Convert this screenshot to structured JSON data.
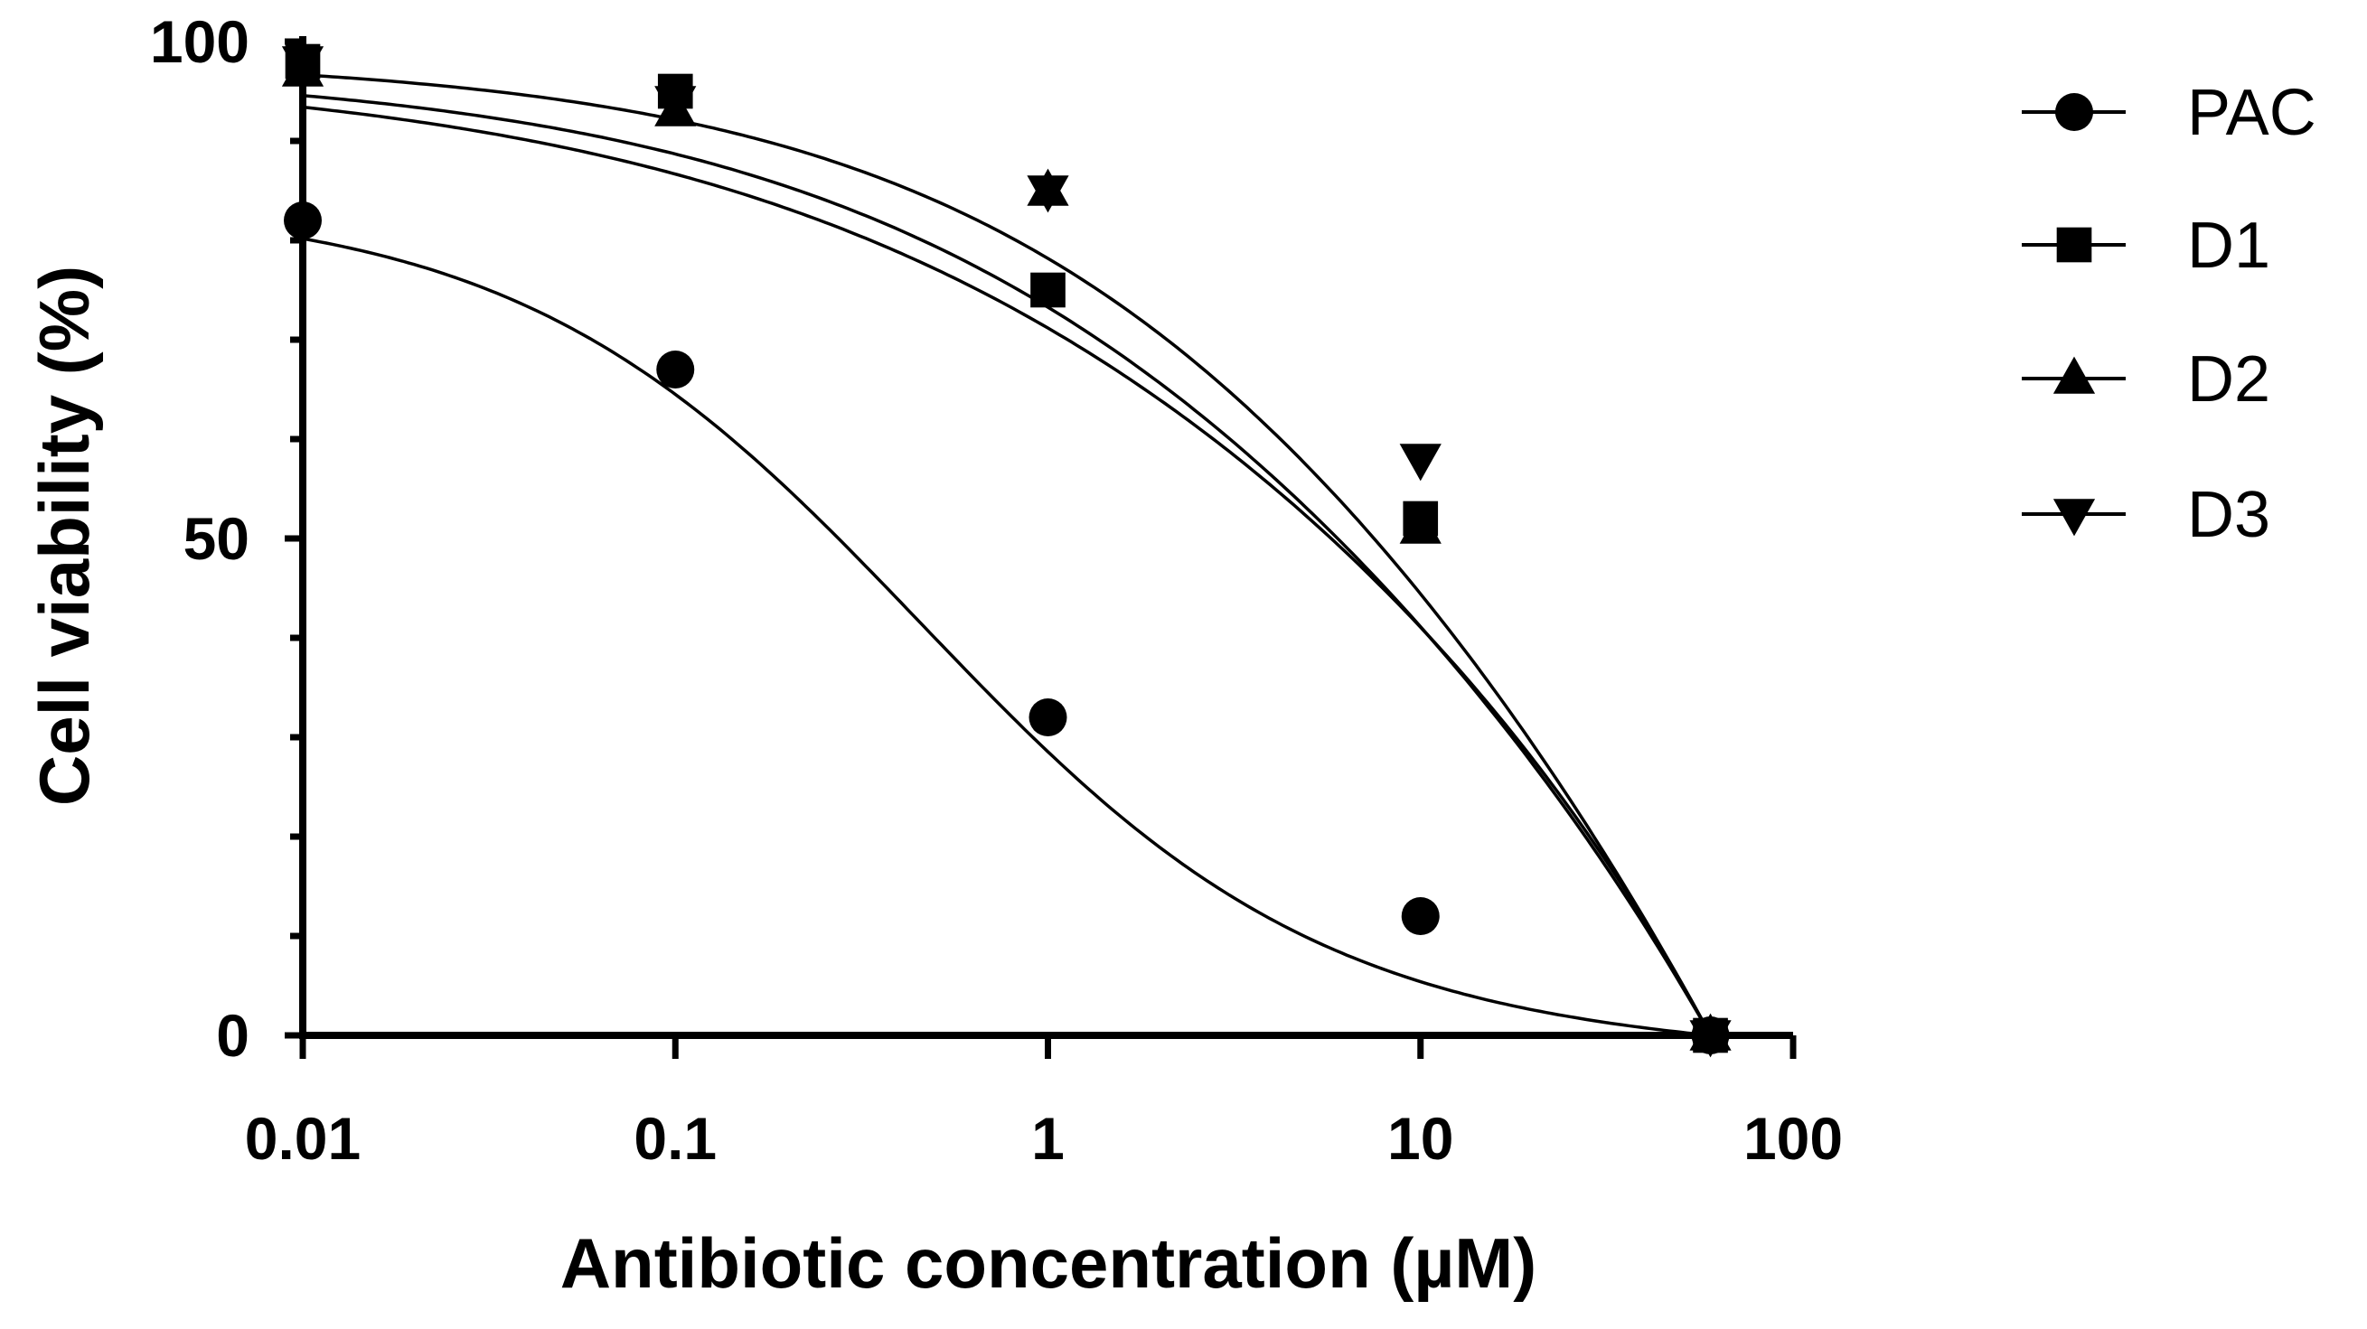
{
  "chart_data": {
    "type": "scatter",
    "xlabel": "Antibiotic concentration (µM)",
    "ylabel": "Cell viability (%)",
    "x_scale": "log",
    "xlim": [
      0.01,
      100
    ],
    "ylim": [
      0,
      100
    ],
    "x_ticks": [
      "0.01",
      "0.1",
      "1",
      "10",
      "100"
    ],
    "y_ticks": [
      "0",
      "50",
      "100"
    ],
    "grid": false,
    "legend_position": "right",
    "x": [
      0.01,
      0.1,
      1,
      10,
      60
    ],
    "series": [
      {
        "name": "PAC",
        "marker": "circle",
        "values": [
          82,
          67,
          32,
          12,
          0
        ],
        "fit": {
          "top": 84,
          "bottom": 0,
          "ec50": 0.45,
          "hill": 0.8,
          "cutoff": 60
        }
      },
      {
        "name": "D1",
        "marker": "square",
        "values": [
          98,
          95,
          75,
          52,
          0
        ],
        "fit": {
          "top": 97.5,
          "bottom": 0,
          "ec50": 10.5,
          "hill": 0.45,
          "cutoff": 60
        }
      },
      {
        "name": "D2",
        "marker": "triangle-up",
        "values": [
          97,
          93,
          85,
          51,
          0
        ],
        "fit": {
          "top": 97.5,
          "bottom": 0,
          "ec50": 10.5,
          "hill": 0.5,
          "cutoff": 60
        }
      },
      {
        "name": "D3",
        "marker": "triangle-down",
        "values": [
          98,
          94,
          85,
          58,
          0
        ],
        "fit": {
          "top": 98.5,
          "bottom": 0,
          "ec50": 13.5,
          "hill": 0.55,
          "cutoff": 60
        }
      }
    ]
  }
}
